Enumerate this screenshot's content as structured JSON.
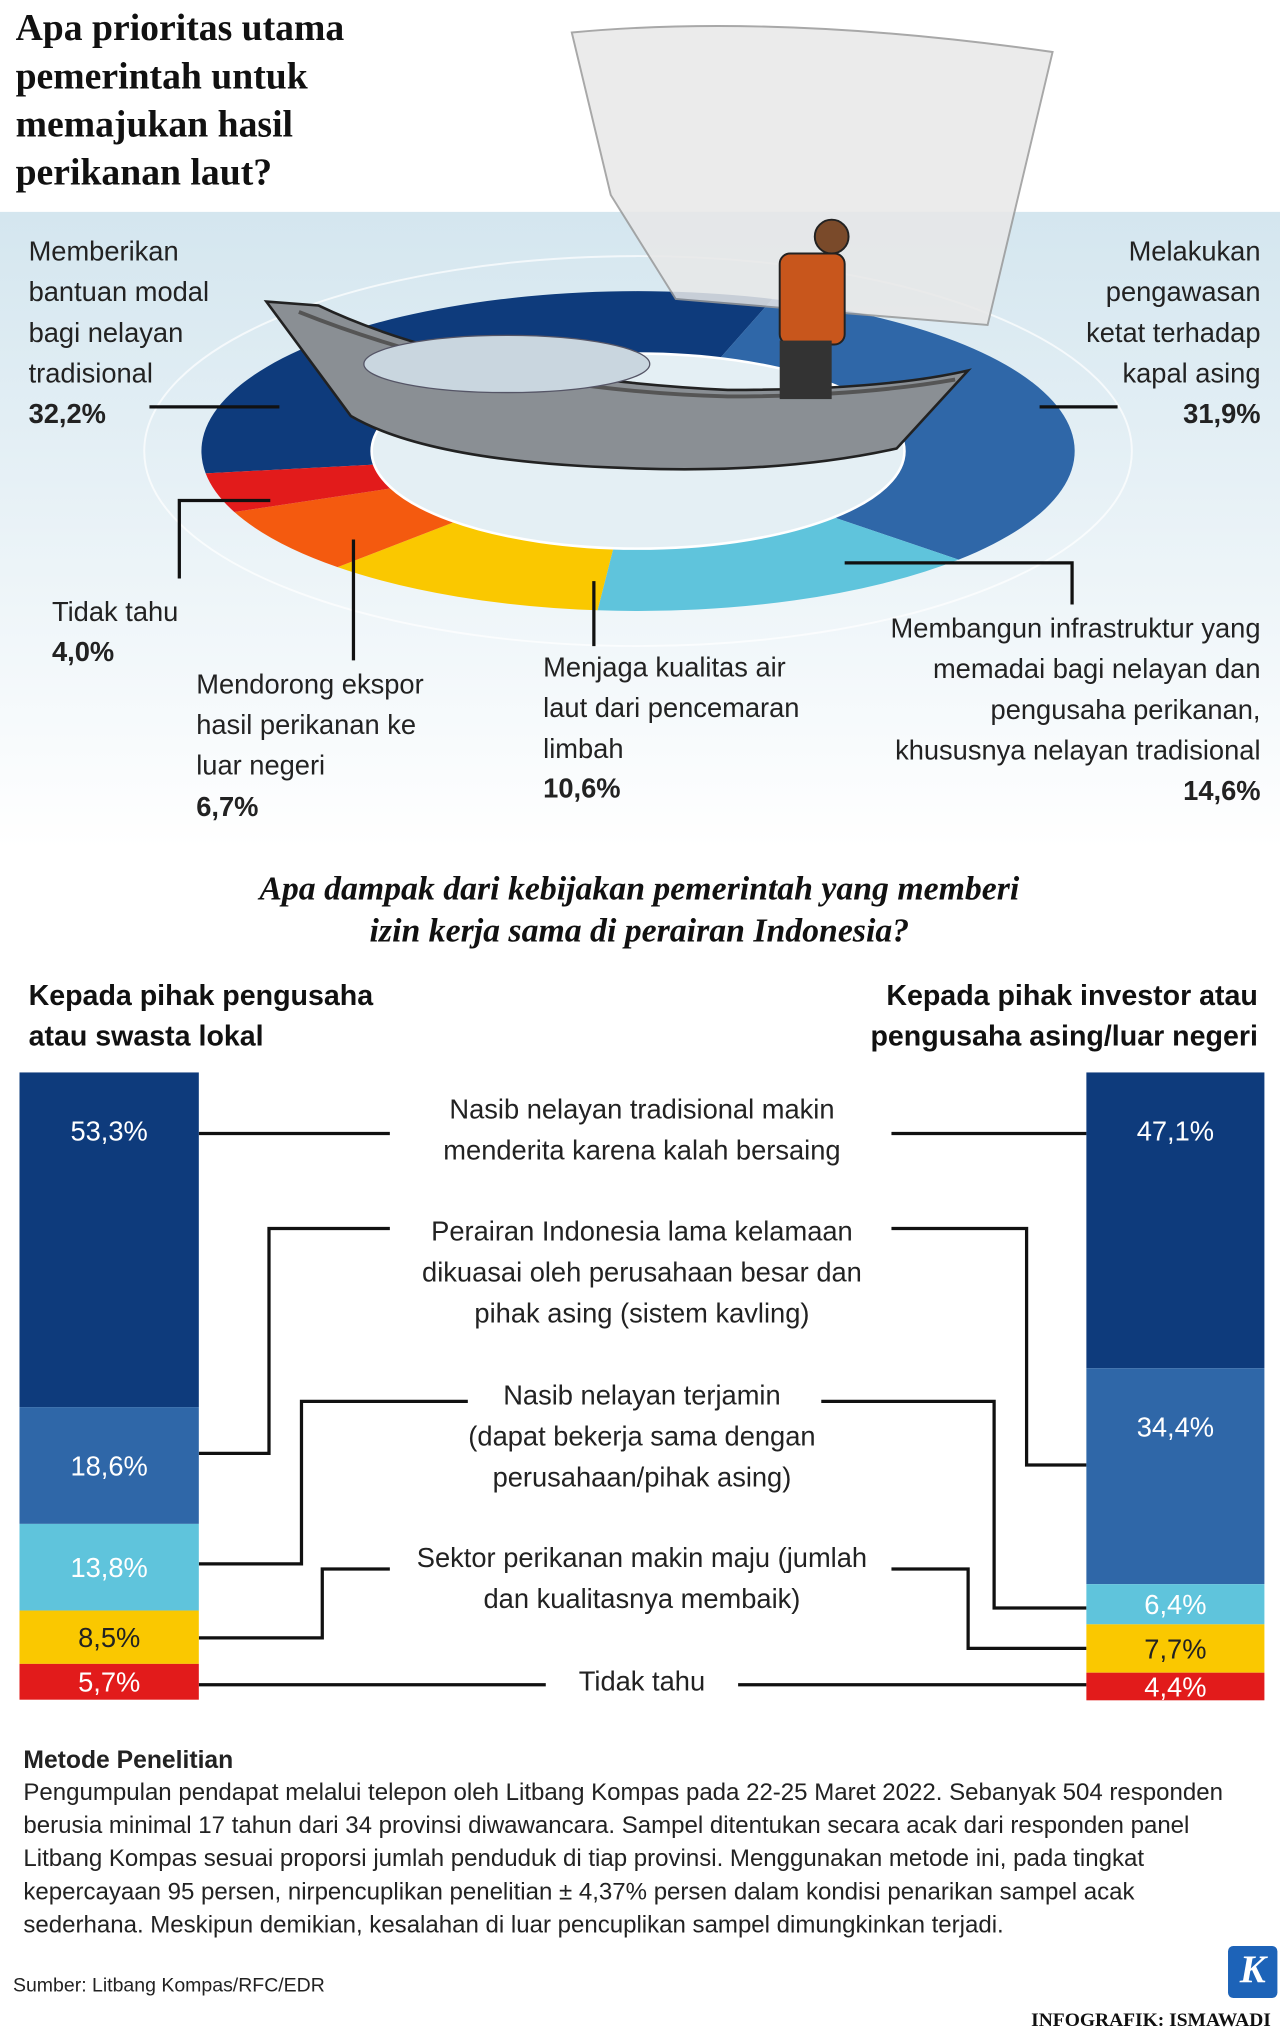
{
  "chart_data": [
    {
      "type": "pie",
      "title": "Apa prioritas utama\npemerintah untuk\nmemajukan hasil\nperikanan laut?",
      "categories": [
        "Memberikan\nbantuan modal\nbagi nelayan\ntradisional",
        "Melakukan\npengawasan\nketat terhadap\nkapal asing",
        "Membangun infrastruktur yang\nmemadai bagi nelayan dan\npengusaha perikanan,\nkhususnya nelayan tradisional",
        "Menjaga kualitas air\nlaut dari pencemaran\nlimbah",
        "Mendorong ekspor\nhasil perikanan ke\nluar negeri",
        "Tidak tahu"
      ],
      "values": [
        32.2,
        31.9,
        14.6,
        10.6,
        6.7,
        4.0
      ],
      "value_labels": [
        "32,2%",
        "31,9%",
        "14,6%",
        "10,6%",
        "6,7%",
        "4,0%"
      ],
      "colors": [
        "#0e3b7c",
        "#2f67a8",
        "#5fc4dc",
        "#fac800",
        "#f45a0f",
        "#e21b1b"
      ]
    },
    {
      "type": "stacked_bar",
      "title": "Apa dampak dari kebijakan pemerintah yang memberi\nizin kerja sama di perairan Indonesia?",
      "categories": [
        "Nasib nelayan tradisional makin\nmenderita karena kalah bersaing",
        "Perairan Indonesia lama kelamaan\ndikuasai oleh perusahaan besar dan\npihak asing (sistem kavling)",
        "Nasib nelayan terjamin\n(dapat bekerja sama dengan\nperusahaan/pihak asing)",
        "Sektor perikanan makin maju (jumlah\ndan kualitasnya membaik)",
        "Tidak tahu"
      ],
      "colors": [
        "#0e3b7c",
        "#2f67a8",
        "#5fc4dc",
        "#fac800",
        "#e21b1b"
      ],
      "ylim": [
        0,
        100
      ],
      "series": [
        {
          "name": "Kepada pihak pengusaha\natau swasta lokal",
          "values": [
            53.3,
            18.6,
            13.8,
            8.5,
            5.7
          ],
          "value_labels": [
            "53,3%",
            "18,6%",
            "13,8%",
            "8,5%",
            "5,7%"
          ]
        },
        {
          "name": "Kepada pihak investor atau\npengusaha asing/luar negeri",
          "values": [
            47.1,
            34.4,
            6.4,
            7.7,
            4.4
          ],
          "value_labels": [
            "47,1%",
            "34,4%",
            "6,4%",
            "7,7%",
            "4,4%"
          ]
        }
      ]
    }
  ],
  "method": {
    "title": "Metode Penelitian",
    "text": "Pengumpulan pendapat melalui telepon oleh Litbang Kompas pada 22-25 Maret 2022. Sebanyak 504 responden\nberusia minimal 17 tahun dari 34 provinsi diwawancara. Sampel ditentukan secara acak dari responden panel\nLitbang Kompas sesuai proporsi jumlah penduduk di tiap provinsi. Menggunakan metode ini, pada tingkat\nkepercayaan 95 persen, nirpencuplikan penelitian ± 4,37% persen dalam kondisi penarikan sampel acak\nsederhana. Meskipun demikian, kesalahan di luar pencuplikan sampel dimungkinkan terjadi."
  },
  "source": "Sumber: Litbang Kompas/RFC/EDR",
  "credit": "INFOGRAFIK: ISMAWADI",
  "logo": "K"
}
